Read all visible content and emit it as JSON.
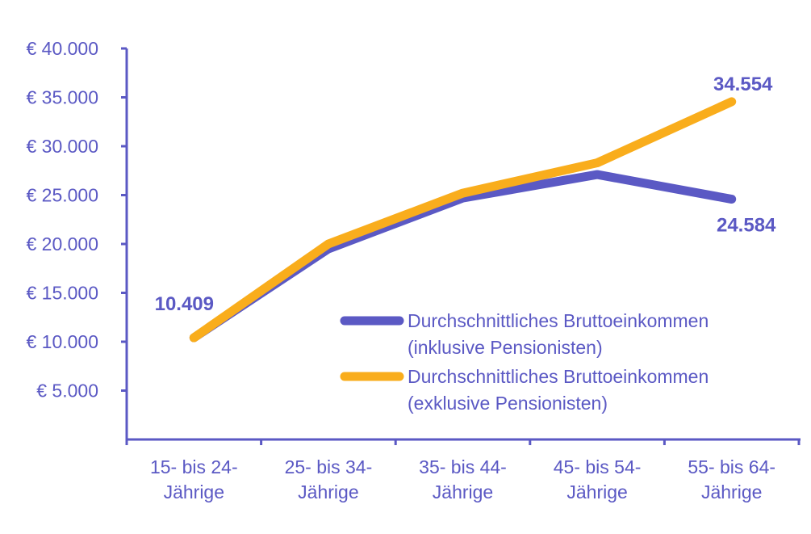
{
  "chart_data": {
    "type": "line",
    "title": "",
    "xlabel": "",
    "ylabel": "",
    "ylim": [
      0,
      40000
    ],
    "yticks": [
      5000,
      10000,
      15000,
      20000,
      25000,
      30000,
      35000,
      40000
    ],
    "ytick_labels": [
      "€ 5.000",
      "€ 10.000",
      "€ 15.000",
      "€ 20.000",
      "€ 25.000",
      "€ 30.000",
      "€ 35.000",
      "€ 40.000"
    ],
    "categories": [
      [
        "15- bis 24-",
        "Jährige"
      ],
      [
        "25- bis 34-",
        "Jährige"
      ],
      [
        "35- bis 44-",
        "Jährige"
      ],
      [
        "45- bis 54-",
        "Jährige"
      ],
      [
        "55- bis 64-",
        "Jährige"
      ]
    ],
    "grid": false,
    "legend_position": "center-right",
    "series": [
      {
        "name_lines": [
          "Durchschnittliches Bruttoeinkommen",
          "(inklusive Pensionisten)"
        ],
        "color": "#5b59c4",
        "values": [
          10409,
          19500,
          24700,
          27100,
          24584
        ]
      },
      {
        "name_lines": [
          "Durchschnittliches Bruttoeinkommen",
          "(exklusive Pensionisten)"
        ],
        "color": "#f9ad1c",
        "values": [
          10409,
          20000,
          25200,
          28300,
          34554
        ]
      }
    ],
    "data_labels": [
      {
        "series": 0,
        "index": 0,
        "text": "10.409"
      },
      {
        "series": 1,
        "index": 4,
        "text": "34.554"
      },
      {
        "series": 0,
        "index": 4,
        "text": "24.584"
      }
    ]
  }
}
